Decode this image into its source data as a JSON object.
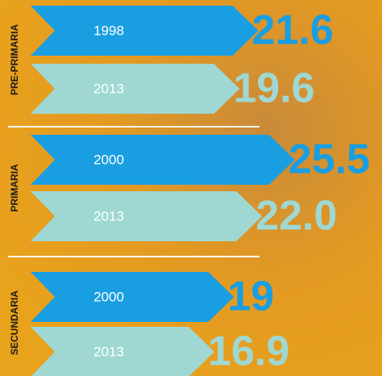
{
  "chart_data": {
    "type": "chevron-bar",
    "groups": [
      {
        "name": "PRE-PRIMARIA",
        "categories": [
          "1998",
          "2013"
        ],
        "values": [
          21.6,
          19.6
        ]
      },
      {
        "name": "PRIMARIA",
        "categories": [
          "2000",
          "2013"
        ],
        "values": [
          25.5,
          22.0
        ],
        "value_labels": [
          "25.5",
          "22.0"
        ]
      },
      {
        "name": "SECUNDARIA",
        "categories": [
          "2000",
          "2013"
        ],
        "values": [
          19,
          16.9
        ]
      }
    ],
    "colors": [
      "#1a9ee2",
      "#9fd8d2"
    ]
  }
}
